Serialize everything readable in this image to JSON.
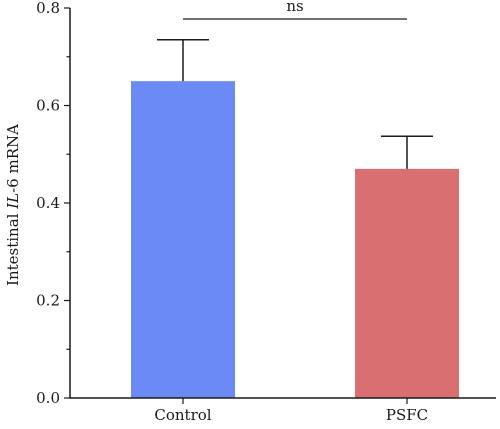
{
  "chart_data": {
    "type": "bar",
    "categories": [
      "Control",
      "PSFC"
    ],
    "values": [
      0.65,
      0.47
    ],
    "error_upper": [
      0.735,
      0.537
    ],
    "colors": [
      "#6b8af6",
      "#d96f70"
    ],
    "ylabel_parts": [
      "Intestinal ",
      "IL",
      "-6 mRNA"
    ],
    "xlabel": "",
    "title": "",
    "ylim": [
      0,
      0.8
    ],
    "yticks": [
      0.0,
      0.2,
      0.4,
      0.6,
      0.8
    ],
    "ytick_labels": [
      "0.0",
      "0.2",
      "0.4",
      "0.6",
      "0.8"
    ],
    "grid": false,
    "legend": "none",
    "significance": {
      "label": "ns",
      "between": [
        "Control",
        "PSFC"
      ]
    }
  }
}
